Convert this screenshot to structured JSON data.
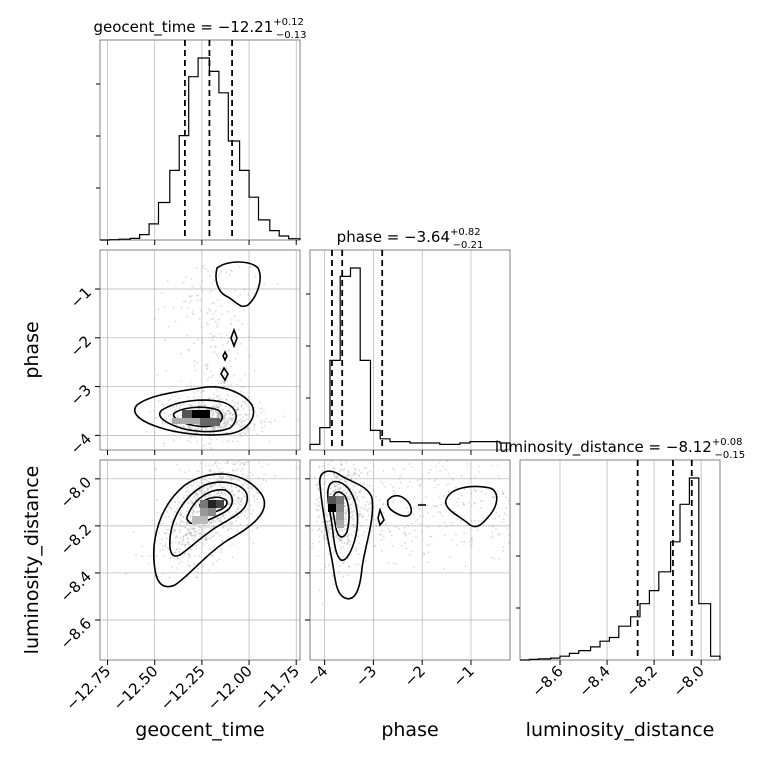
{
  "chart_data": {
    "type": "corner",
    "parameters": [
      "geocent_time",
      "phase",
      "luminosity_distance"
    ],
    "axis_labels": {
      "geocent_time": "geocent_time",
      "phase": "phase",
      "luminosity_distance": "luminosity_distance"
    },
    "titles": {
      "geocent_time": {
        "prefix": "geocent_time = ",
        "median": "−12.21",
        "plus": "+0.12",
        "minus": "−0.13"
      },
      "phase": {
        "prefix": "phase = ",
        "median": "−3.64",
        "plus": "+0.82",
        "minus": "−0.21"
      },
      "luminosity_distance": {
        "prefix": "luminosity_distance = ",
        "median": "−8.12",
        "plus": "+0.08",
        "minus": "−0.15"
      }
    },
    "ranges": {
      "geocent_time": [
        -12.79,
        -11.73
      ],
      "phase": [
        -4.3,
        -0.2
      ],
      "luminosity_distance": [
        -8.77,
        -7.92
      ]
    },
    "ticks": {
      "geocent_time": {
        "values": [
          -12.75,
          -12.5,
          -12.25,
          -12.0,
          -11.75
        ],
        "labels": [
          "−12.75",
          "−12.50",
          "−12.25",
          "−12.00",
          "−11.75"
        ]
      },
      "phase": {
        "values": [
          -4,
          -3,
          -2,
          -1
        ],
        "labels": [
          "−4",
          "−3",
          "−2",
          "−1"
        ]
      },
      "luminosity_distance": {
        "values": [
          -8.6,
          -8.4,
          -8.2,
          -8.0
        ],
        "labels": [
          "−8.6",
          "−8.4",
          "−8.2",
          "−8.0"
        ]
      }
    },
    "quantiles": {
      "geocent_time": [
        -12.34,
        -12.21,
        -12.09
      ],
      "phase": [
        -3.85,
        -3.64,
        -2.82
      ],
      "luminosity_distance": [
        -8.27,
        -8.12,
        -8.04
      ]
    },
    "histograms": {
      "geocent_time": {
        "edges": [
          -12.79,
          -12.74,
          -12.69,
          -12.63,
          -12.58,
          -12.53,
          -12.48,
          -12.42,
          -12.37,
          -12.32,
          -12.27,
          -12.21,
          -12.16,
          -12.11,
          -12.05,
          -12.0,
          -11.95,
          -11.89,
          -11.84,
          -11.79,
          -11.73
        ],
        "counts": [
          0.0,
          0.1,
          0.3,
          0.6,
          2.0,
          6.0,
          14.0,
          26.0,
          39.0,
          61.0,
          68.0,
          63.0,
          55.0,
          37.0,
          26.0,
          16.0,
          7.5,
          3.5,
          1.5,
          0.5
        ]
      },
      "phase": {
        "edges": [
          -4.3,
          -4.1,
          -3.89,
          -3.68,
          -3.47,
          -3.27,
          -3.06,
          -2.86,
          -2.66,
          -2.45,
          -2.25,
          -2.04,
          -1.84,
          -1.64,
          -1.43,
          -1.23,
          -1.02,
          -0.82,
          -0.61,
          -0.41,
          -0.2
        ],
        "counts": [
          2,
          8,
          32,
          62,
          65,
          32,
          7,
          4,
          3,
          3,
          2.5,
          2.5,
          2.5,
          2,
          2,
          2.5,
          3,
          3,
          3,
          2.5
        ]
      },
      "luminosity_distance": {
        "edges": [
          -8.77,
          -8.73,
          -8.69,
          -8.64,
          -8.6,
          -8.56,
          -8.52,
          -8.47,
          -8.43,
          -8.39,
          -8.35,
          -8.3,
          -8.26,
          -8.22,
          -8.18,
          -8.13,
          -8.09,
          -8.05,
          -8.01,
          -7.96,
          -7.92
        ],
        "counts": [
          0.0,
          0.3,
          0.6,
          1.0,
          2.0,
          3.5,
          5.0,
          7.0,
          10.0,
          12.0,
          18.0,
          23.0,
          30.0,
          37.0,
          47.0,
          63.0,
          83.0,
          97.0,
          30.0,
          2.0
        ]
      }
    },
    "density_2d": {
      "phase_vs_geocent_time": {
        "x": "geocent_time",
        "y": "phase"
      },
      "luminosity_distance_vs_geocent_time": {
        "x": "geocent_time",
        "y": "luminosity_distance"
      },
      "luminosity_distance_vs_phase": {
        "x": "phase",
        "y": "luminosity_distance"
      }
    },
    "grid": true,
    "colors": {
      "lines": "#000000",
      "points": "#999999",
      "grid": "#b0b0b0"
    }
  }
}
